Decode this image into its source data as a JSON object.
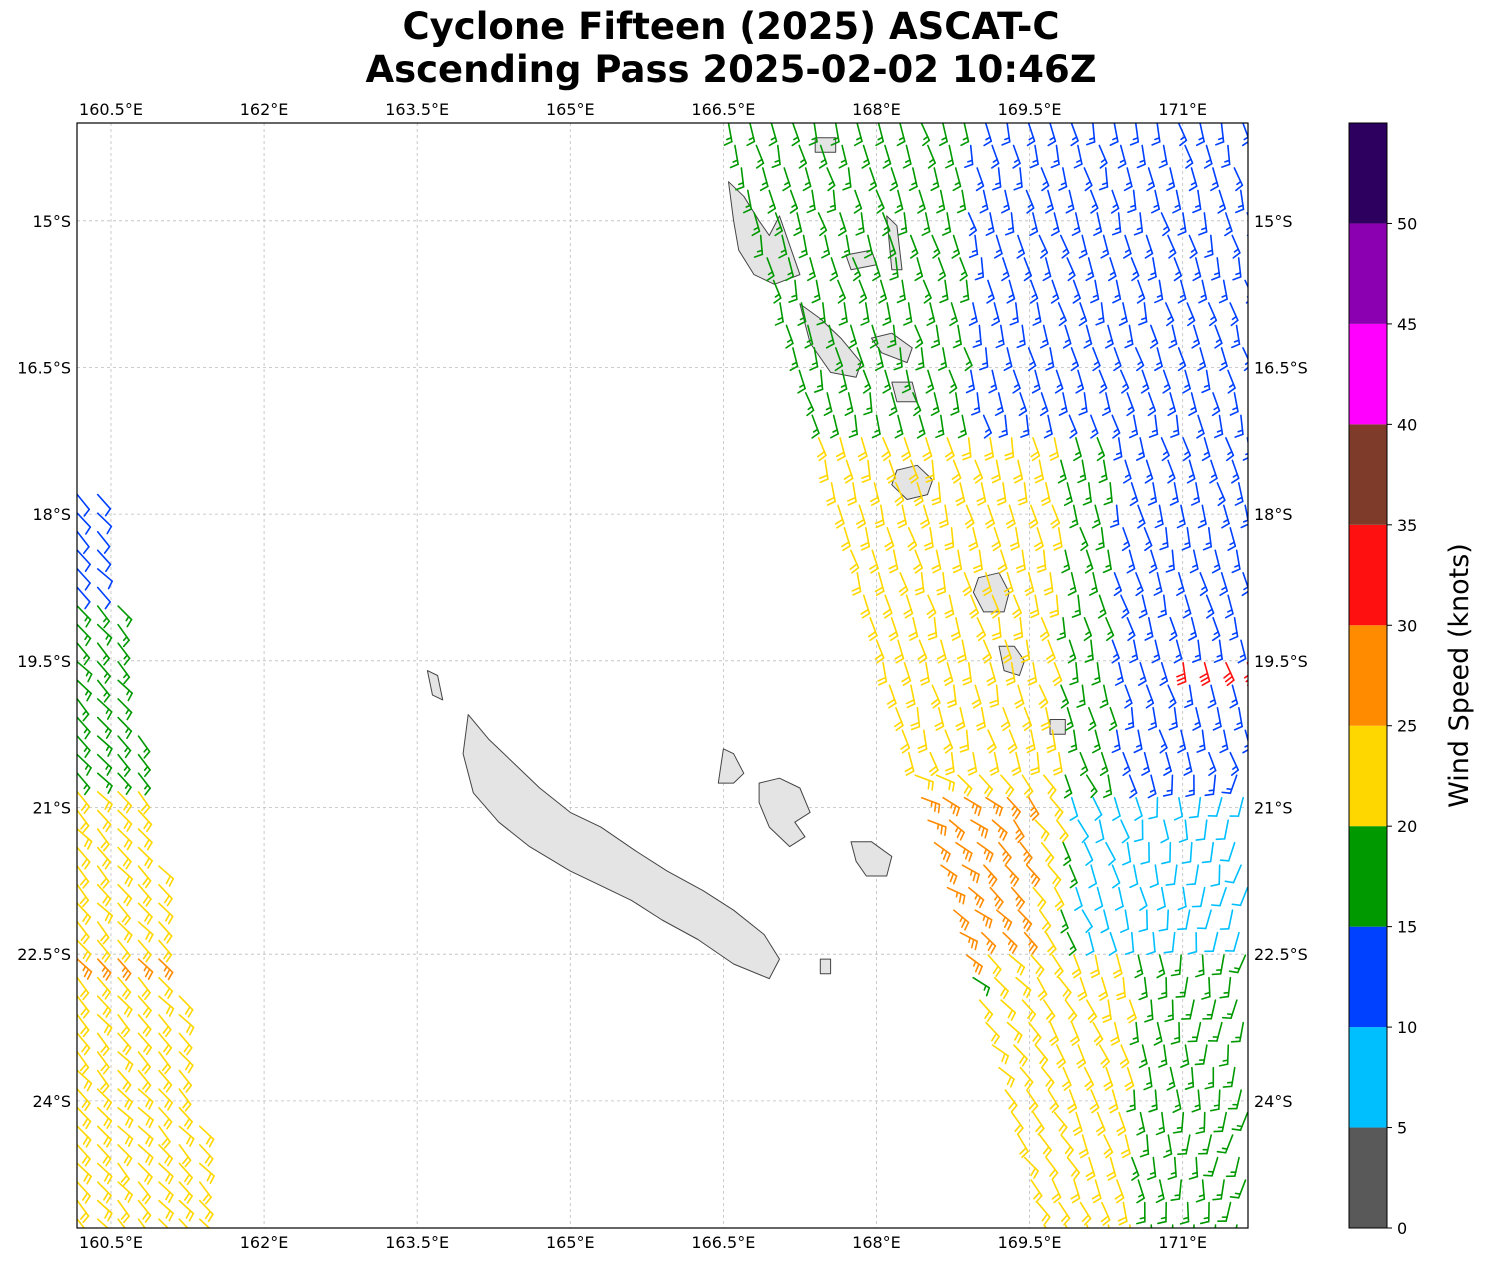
{
  "title_line1": "Cyclone Fifteen (2025) ASCAT-C",
  "title_line2": "Ascending Pass 2025-02-02 10:46Z",
  "map": {
    "lon_min": 160.167,
    "lon_max": 171.64,
    "lat_min": -25.3,
    "lat_max": -14.0,
    "lon_ticks": [
      160.5,
      162,
      163.5,
      165,
      166.5,
      168,
      169.5,
      171
    ],
    "lon_tick_labels": [
      "160.5°E",
      "162°E",
      "163.5°E",
      "165°E",
      "166.5°E",
      "168°E",
      "169.5°E",
      "171°E"
    ],
    "lat_ticks": [
      -15,
      -16.5,
      -18,
      -19.5,
      -21,
      -22.5,
      -24
    ],
    "lat_tick_labels": [
      "15°S",
      "16.5°S",
      "18°S",
      "19.5°S",
      "21°S",
      "22.5°S",
      "24°S"
    ],
    "grid": true,
    "land": [
      {
        "name": "New Caledonia",
        "lons": [
          164.0,
          164.2,
          164.45,
          164.7,
          165.0,
          165.3,
          165.65,
          165.95,
          166.3,
          166.6,
          166.9,
          167.05,
          166.95,
          166.6,
          166.25,
          165.9,
          165.6,
          165.3,
          165.0,
          164.6,
          164.3,
          164.05,
          163.95,
          164.0
        ],
        "lats": [
          -20.05,
          -20.3,
          -20.55,
          -20.8,
          -21.05,
          -21.2,
          -21.45,
          -21.65,
          -21.85,
          -22.05,
          -22.3,
          -22.55,
          -22.75,
          -22.6,
          -22.35,
          -22.15,
          -21.95,
          -21.8,
          -21.65,
          -21.4,
          -21.15,
          -20.85,
          -20.45,
          -20.05
        ]
      },
      {
        "name": "Belep",
        "lons": [
          163.6,
          163.7,
          163.75,
          163.65,
          163.6
        ],
        "lats": [
          -19.6,
          -19.65,
          -19.9,
          -19.85,
          -19.6
        ]
      },
      {
        "name": "Ouvea",
        "lons": [
          166.5,
          166.6,
          166.7,
          166.6,
          166.45
        ],
        "lats": [
          -20.4,
          -20.45,
          -20.65,
          -20.75,
          -20.75
        ]
      },
      {
        "name": "Lifou",
        "lons": [
          166.85,
          167.05,
          167.25,
          167.35,
          167.2,
          167.3,
          167.15,
          166.95,
          166.85
        ],
        "lats": [
          -20.75,
          -20.7,
          -20.8,
          -21.05,
          -21.15,
          -21.3,
          -21.4,
          -21.2,
          -20.95
        ]
      },
      {
        "name": "Mare",
        "lons": [
          167.75,
          167.95,
          168.15,
          168.1,
          167.9,
          167.8,
          167.75
        ],
        "lats": [
          -21.35,
          -21.35,
          -21.5,
          -21.7,
          -21.7,
          -21.55,
          -21.35
        ]
      },
      {
        "name": "Isle of Pines",
        "lons": [
          167.45,
          167.55,
          167.55,
          167.45,
          167.45
        ],
        "lats": [
          -22.55,
          -22.55,
          -22.7,
          -22.7,
          -22.55
        ]
      },
      {
        "name": "Espiritu Santo",
        "lons": [
          166.55,
          166.7,
          166.85,
          166.95,
          167.05,
          167.25,
          167.0,
          166.8,
          166.65,
          166.6,
          166.55
        ],
        "lats": [
          -14.6,
          -14.75,
          -15.0,
          -15.15,
          -14.95,
          -15.55,
          -15.65,
          -15.55,
          -15.3,
          -15.0,
          -14.6
        ]
      },
      {
        "name": "Malekula",
        "lons": [
          167.25,
          167.45,
          167.65,
          167.85,
          167.8,
          167.55,
          167.35,
          167.25
        ],
        "lats": [
          -15.85,
          -16.0,
          -16.2,
          -16.45,
          -16.6,
          -16.55,
          -16.25,
          -15.85
        ]
      },
      {
        "name": "Ambae",
        "lons": [
          167.7,
          167.95,
          168.0,
          167.75,
          167.7
        ],
        "lats": [
          -15.35,
          -15.3,
          -15.45,
          -15.5,
          -15.35
        ]
      },
      {
        "name": "Maewo",
        "lons": [
          168.1,
          168.2,
          168.25,
          168.15,
          168.1
        ],
        "lats": [
          -14.95,
          -15.05,
          -15.5,
          -15.5,
          -14.95
        ]
      },
      {
        "name": "Ambrym",
        "lons": [
          167.95,
          168.15,
          168.35,
          168.3,
          168.05,
          167.95
        ],
        "lats": [
          -16.2,
          -16.15,
          -16.3,
          -16.45,
          -16.35,
          -16.2
        ]
      },
      {
        "name": "Epi",
        "lons": [
          168.15,
          168.35,
          168.4,
          168.2,
          168.15
        ],
        "lats": [
          -16.65,
          -16.65,
          -16.85,
          -16.85,
          -16.65
        ]
      },
      {
        "name": "Efate",
        "lons": [
          168.2,
          168.4,
          168.55,
          168.5,
          168.3,
          168.15,
          168.2
        ],
        "lats": [
          -17.55,
          -17.5,
          -17.65,
          -17.8,
          -17.85,
          -17.7,
          -17.55
        ]
      },
      {
        "name": "Erromango",
        "lons": [
          169.0,
          169.2,
          169.3,
          169.25,
          169.05,
          168.95,
          169.0
        ],
        "lats": [
          -18.65,
          -18.6,
          -18.8,
          -19.0,
          -19.0,
          -18.8,
          -18.65
        ]
      },
      {
        "name": "Tanna",
        "lons": [
          169.2,
          169.35,
          169.45,
          169.4,
          169.25,
          169.2
        ],
        "lats": [
          -19.35,
          -19.35,
          -19.5,
          -19.65,
          -19.6,
          -19.35
        ]
      },
      {
        "name": "Aneityum",
        "lons": [
          169.7,
          169.85,
          169.85,
          169.7,
          169.7
        ],
        "lats": [
          -20.1,
          -20.1,
          -20.25,
          -20.25,
          -20.1
        ]
      },
      {
        "name": "Banks",
        "lons": [
          167.4,
          167.6,
          167.6,
          167.4,
          167.4
        ],
        "lats": [
          -14.15,
          -14.15,
          -14.3,
          -14.3,
          -14.15
        ]
      }
    ]
  },
  "colorbar": {
    "label": "Wind Speed (knots)",
    "bounds": [
      0,
      5,
      10,
      15,
      20,
      25,
      30,
      35,
      40,
      45,
      50,
      55
    ],
    "tick_labels": [
      "0",
      "5",
      "10",
      "15",
      "20",
      "25",
      "30",
      "35",
      "40",
      "45",
      "50"
    ],
    "colors": [
      "#595959",
      "#00bfff",
      "#0040ff",
      "#009900",
      "#ffd700",
      "#ff8c00",
      "#ff1010",
      "#7f3b2a",
      "#ff00ff",
      "#8b00b0",
      "#2d0060"
    ]
  },
  "wind_data": {
    "swaths": [
      {
        "lon_start": 160.17,
        "lon_end": 161.55,
        "lat_top": -17.8,
        "lat_bottom": -25.3,
        "speed_by_lat": [
          [
            -17.8,
            12
          ],
          [
            -18.8,
            15
          ],
          [
            -20.6,
            16
          ],
          [
            -20.7,
            22
          ],
          [
            -22.5,
            26
          ],
          [
            -22.6,
            22
          ],
          [
            -25.3,
            22
          ]
        ]
      },
      {
        "lon_start": 166.55,
        "lon_end": 171.64,
        "lat_top": -14.0,
        "lat_bottom": -25.3,
        "note_fields": "speed regions"
      }
    ],
    "regions": [
      {
        "lon_min": 167.8,
        "lon_max": 169.8,
        "lat_min": -22.5,
        "lat_max": -17.0,
        "speed": 22
      },
      {
        "lon_min": 168.3,
        "lon_max": 169.5,
        "lat_min": -22.6,
        "lat_max": -20.7,
        "speed": 27
      },
      {
        "lon_min": 171.0,
        "lon_max": 171.64,
        "lat_min": -19.7,
        "lat_max": -19.3,
        "speed": 32
      },
      {
        "lon_min": 169.9,
        "lon_max": 171.64,
        "lat_min": -22.5,
        "lat_max": -20.9,
        "speed": 8
      },
      {
        "lon_min": 169.0,
        "lon_max": 171.64,
        "lat_min": -25.3,
        "lat_max": -22.4,
        "speed": 22
      },
      {
        "lon_min": 170.5,
        "lon_max": 171.64,
        "lat_min": -25.3,
        "lat_max": -22.4,
        "speed": 17
      }
    ]
  }
}
